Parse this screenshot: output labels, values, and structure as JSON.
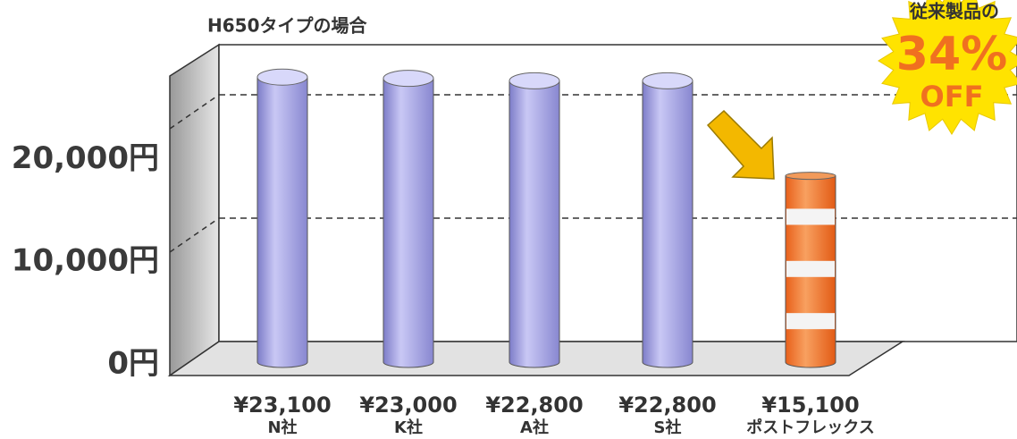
{
  "chart_data": {
    "type": "bar",
    "title": "H650タイプの場合",
    "categories": [
      "N社",
      "K社",
      "A社",
      "S社",
      "ポストフレックス"
    ],
    "values": [
      23100,
      23000,
      22800,
      22800,
      15100
    ],
    "value_labels": [
      "¥23,100",
      "¥23,000",
      "¥22,800",
      "¥22,800",
      "¥15,100"
    ],
    "colors": [
      "#a9a8e8",
      "#a9a8e8",
      "#a9a8e8",
      "#a9a8e8",
      "#f07a2a"
    ],
    "ylim": [
      0,
      25000
    ],
    "yticks": [
      {
        "value": 0,
        "label": "0円"
      },
      {
        "value": 10000,
        "label": "10,000円"
      },
      {
        "value": 20000,
        "label": "20,000円"
      }
    ],
    "grid": true,
    "annotations": [
      "従来製品の",
      "34%",
      "OFF"
    ]
  }
}
